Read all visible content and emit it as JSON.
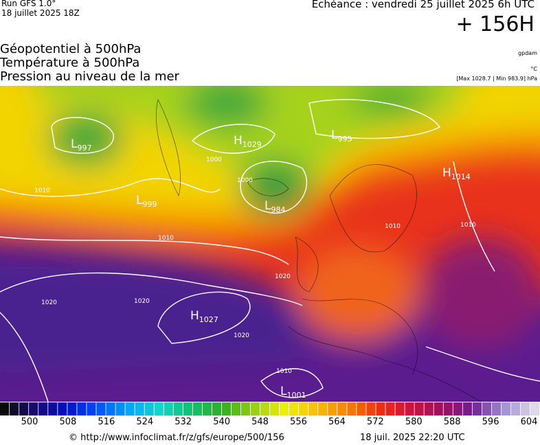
{
  "header": {
    "run": "Run GFS 1.0°",
    "run_date": "18 juillet 2025 18Z",
    "echeance": "Echéance : vendredi 25 juillet 2025 6h UTC",
    "lead": "+ 156H"
  },
  "fields": [
    "Géopotentiel à 500hPa",
    "Température à 500hPa",
    "Pression au niveau de la mer"
  ],
  "units": [
    "gpdam",
    "°C",
    "[Max 1028.7 | Min 983.9] hPa"
  ],
  "centers": [
    {
      "letter": "L",
      "value": "997"
    },
    {
      "letter": "H",
      "value": "1029"
    },
    {
      "letter": "L",
      "value": "995"
    },
    {
      "letter": "H",
      "value": "1014"
    },
    {
      "letter": "L",
      "value": "999"
    },
    {
      "letter": "L",
      "value": "984"
    },
    {
      "letter": "H",
      "value": "1027"
    },
    {
      "letter": "L",
      "value": "1001"
    }
  ],
  "isobar_labels": [
    "1010",
    "1000",
    "1010",
    "1010",
    "1020",
    "1020",
    "1020",
    "1020",
    "1010",
    "1000",
    "1010"
  ],
  "colorbar": {
    "labels": [
      500,
      508,
      516,
      524,
      532,
      540,
      548,
      556,
      564,
      572,
      580,
      588,
      596,
      604
    ]
  },
  "footer": {
    "source": "© http://www.infoclimat.fr/z/gfs/europe/500/156",
    "timestamp": "18 juil. 2025 22:20 UTC"
  }
}
